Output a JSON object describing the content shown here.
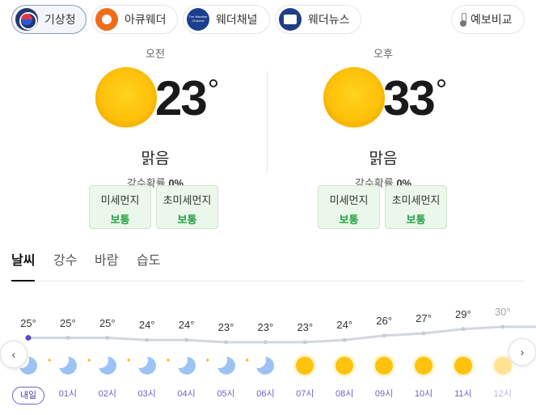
{
  "providers": [
    {
      "label": "기상청",
      "icon": "kma-logo-icon",
      "active": true
    },
    {
      "label": "아큐웨더",
      "icon": "accuweather-logo-icon",
      "active": false
    },
    {
      "label": "웨더채널",
      "icon": "weather-channel-logo-icon",
      "active": false,
      "logo_text": "The Weather Channel"
    },
    {
      "label": "웨더뉴스",
      "icon": "weathernews-logo-icon",
      "active": false
    }
  ],
  "compare_label": "예보비교",
  "am": {
    "period": "오전",
    "temp": "23",
    "deg": "°",
    "condition": "맑음",
    "rain_label": "강수확률",
    "rain_value": "0%",
    "dust": [
      {
        "label": "미세먼지",
        "level": "보통"
      },
      {
        "label": "초미세먼지",
        "level": "보통"
      }
    ]
  },
  "pm": {
    "period": "오후",
    "temp": "33",
    "deg": "°",
    "condition": "맑음",
    "rain_label": "강수확률",
    "rain_value": "0%",
    "dust": [
      {
        "label": "미세먼지",
        "level": "보통"
      },
      {
        "label": "초미세먼지",
        "level": "보통"
      }
    ]
  },
  "tabs": [
    "날씨",
    "강수",
    "바람",
    "습도"
  ],
  "active_tab": 0,
  "hourly": [
    {
      "temp": "25°",
      "value": 25,
      "icon": "moon",
      "label": "내일"
    },
    {
      "temp": "25°",
      "value": 25,
      "icon": "moon",
      "label": "01시"
    },
    {
      "temp": "25°",
      "value": 25,
      "icon": "moon",
      "label": "02시"
    },
    {
      "temp": "24°",
      "value": 24,
      "icon": "moon",
      "label": "03시"
    },
    {
      "temp": "24°",
      "value": 24,
      "icon": "moon",
      "label": "04시"
    },
    {
      "temp": "23°",
      "value": 23,
      "icon": "moon",
      "label": "05시"
    },
    {
      "temp": "23°",
      "value": 23,
      "icon": "moon",
      "label": "06시"
    },
    {
      "temp": "23°",
      "value": 23,
      "icon": "sun",
      "label": "07시"
    },
    {
      "temp": "24°",
      "value": 24,
      "icon": "sun",
      "label": "08시"
    },
    {
      "temp": "26°",
      "value": 26,
      "icon": "sun",
      "label": "09시"
    },
    {
      "temp": "27°",
      "value": 27,
      "icon": "sun",
      "label": "10시"
    },
    {
      "temp": "29°",
      "value": 29,
      "icon": "sun",
      "label": "11시"
    },
    {
      "temp": "30°",
      "value": 30,
      "icon": "sun",
      "label": "12시"
    }
  ],
  "nav": {
    "prev": "‹",
    "next": "›"
  }
}
